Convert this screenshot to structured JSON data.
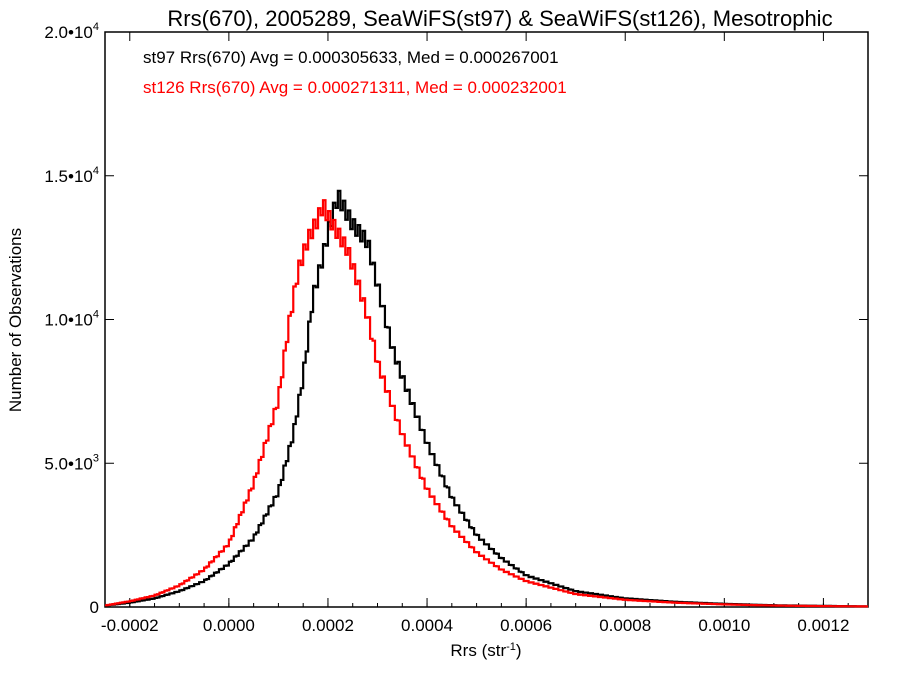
{
  "chart_data": {
    "type": "line",
    "title": "Rrs(670), 2005289, SeaWiFS(st97) & SeaWiFS(st126), Mesotrophic",
    "xlabel_base": "Rrs (str",
    "xlabel_sup": "-1",
    "xlabel_close": ")",
    "ylabel": "Number of Observations",
    "xlim": [
      -0.00025,
      0.00129
    ],
    "ylim": [
      0,
      20000
    ],
    "xticks": [
      {
        "value": -0.0002,
        "label": "-0.0002"
      },
      {
        "value": 0.0,
        "label": "0.0000"
      },
      {
        "value": 0.0002,
        "label": "0.0002"
      },
      {
        "value": 0.0004,
        "label": "0.0004"
      },
      {
        "value": 0.0006,
        "label": "0.0006"
      },
      {
        "value": 0.0008,
        "label": "0.0008"
      },
      {
        "value": 0.001,
        "label": "0.0010"
      },
      {
        "value": 0.0012,
        "label": "0.0012"
      }
    ],
    "yticks": [
      {
        "value": 0,
        "label": "0",
        "sup": ""
      },
      {
        "value": 5000,
        "label": "5.0•10",
        "sup": "3"
      },
      {
        "value": 10000,
        "label": "1.0•10",
        "sup": "4"
      },
      {
        "value": 15000,
        "label": "1.5•10",
        "sup": "4"
      },
      {
        "value": 20000,
        "label": "2.0•10",
        "sup": "4"
      }
    ],
    "annotations": [
      {
        "text": "st97 Rrs(670) Avg = 0.000305633, Med = 0.000267001",
        "color": "#000000"
      },
      {
        "text": "st126 Rrs(670) Avg = 0.000271311, Med = 0.000232001",
        "color": "#ff0000"
      }
    ],
    "series": [
      {
        "color": "#000000",
        "x": [
          -0.00025,
          -0.0002,
          -0.00015,
          -0.0001,
          -5e-05,
          0.0,
          5e-05,
          0.0001,
          0.00013,
          0.00015,
          0.00017,
          0.00019,
          0.0002,
          0.00022,
          0.00025,
          0.00028,
          0.0003,
          0.00033,
          0.00035,
          0.0004,
          0.00045,
          0.0005,
          0.00055,
          0.0006,
          0.0007,
          0.0008,
          0.0009,
          0.001,
          0.0011,
          0.0012,
          0.00129
        ],
        "y": [
          50,
          150,
          300,
          550,
          900,
          1500,
          2400,
          4000,
          6000,
          8000,
          10800,
          12200,
          13000,
          14300,
          13300,
          12700,
          11200,
          9000,
          8000,
          5700,
          3800,
          2500,
          1700,
          1100,
          550,
          300,
          180,
          110,
          60,
          40,
          20
        ]
      },
      {
        "color": "#ff0000",
        "x": [
          -0.00025,
          -0.0002,
          -0.00015,
          -0.0001,
          -5e-05,
          0.0,
          5e-05,
          0.0001,
          0.00012,
          0.00014,
          0.00016,
          0.00018,
          0.00019,
          0.0002,
          0.00022,
          0.00024,
          0.00026,
          0.00028,
          0.0003,
          0.00033,
          0.00035,
          0.0004,
          0.00045,
          0.0005,
          0.00055,
          0.0006,
          0.0007,
          0.0008,
          0.0009,
          0.001,
          0.0011,
          0.0012,
          0.00129
        ],
        "y": [
          50,
          200,
          400,
          750,
          1300,
          2200,
          4300,
          7200,
          9700,
          11700,
          12800,
          13500,
          14000,
          13600,
          13000,
          12400,
          11300,
          10100,
          8500,
          7000,
          6000,
          4100,
          2800,
          1900,
          1300,
          900,
          450,
          250,
          150,
          90,
          50,
          30,
          20
        ]
      }
    ]
  }
}
